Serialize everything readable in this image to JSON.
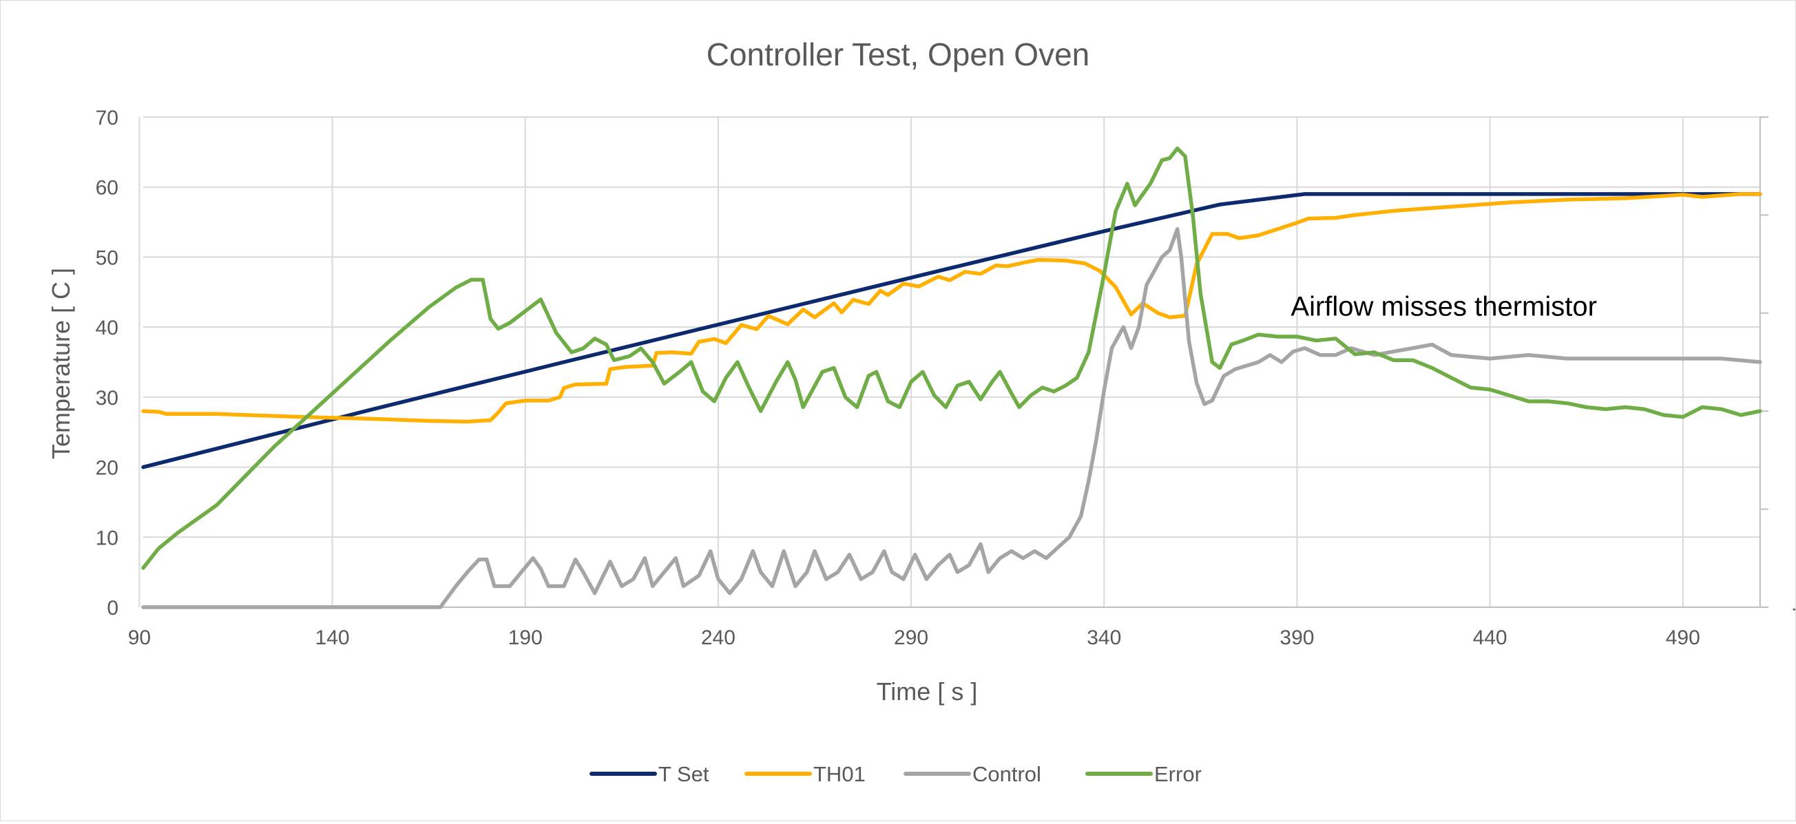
{
  "chart_data": {
    "type": "line",
    "title": "Controller Test, Open Oven",
    "xlabel": "Time [ s ]",
    "ylabel": "Temperature [ C ]",
    "y2label": "",
    "xlim": [
      90,
      510
    ],
    "ylim": [
      0,
      70
    ],
    "y2lim": [
      -10,
      15
    ],
    "x_ticks": [
      90,
      140,
      190,
      240,
      290,
      340,
      390,
      440,
      490
    ],
    "y_ticks": [
      0,
      10,
      20,
      30,
      40,
      50,
      60,
      70
    ],
    "y2_ticks": [
      -10,
      -5,
      0,
      5,
      10,
      15
    ],
    "grid": true,
    "legend_position": "bottom",
    "annotations": [
      {
        "text": "Airflow misses thermistor",
        "x": 390,
        "y": 43
      }
    ],
    "series": [
      {
        "name": "T Set",
        "axis": "left",
        "color": "#0e2a6e",
        "points": [
          [
            91,
            20
          ],
          [
            150,
            28.2
          ],
          [
            200,
            35
          ],
          [
            250,
            41.7
          ],
          [
            300,
            48.4
          ],
          [
            340,
            53.7
          ],
          [
            370,
            57.5
          ],
          [
            392,
            59
          ],
          [
            510,
            59
          ]
        ]
      },
      {
        "name": "TH01",
        "axis": "left",
        "color": "#ffb000",
        "points": [
          [
            91,
            28
          ],
          [
            95,
            27.9
          ],
          [
            97,
            27.6
          ],
          [
            110,
            27.6
          ],
          [
            130,
            27.2
          ],
          [
            150,
            26.9
          ],
          [
            165,
            26.6
          ],
          [
            175,
            26.5
          ],
          [
            181,
            26.7
          ],
          [
            183,
            27.8
          ],
          [
            185,
            29.1
          ],
          [
            190,
            29.5
          ],
          [
            196,
            29.5
          ],
          [
            199,
            30
          ],
          [
            200,
            31.3
          ],
          [
            203,
            31.8
          ],
          [
            211,
            31.9
          ],
          [
            212,
            34
          ],
          [
            216,
            34.3
          ],
          [
            223,
            34.5
          ],
          [
            224,
            36.3
          ],
          [
            228,
            36.4
          ],
          [
            233,
            36.2
          ],
          [
            235,
            37.9
          ],
          [
            239,
            38.3
          ],
          [
            242,
            37.7
          ],
          [
            246,
            40.3
          ],
          [
            250,
            39.7
          ],
          [
            253,
            41.6
          ],
          [
            258,
            40.4
          ],
          [
            262,
            42.5
          ],
          [
            265,
            41.4
          ],
          [
            270,
            43.4
          ],
          [
            272,
            42.1
          ],
          [
            275,
            43.9
          ],
          [
            279,
            43.3
          ],
          [
            282,
            45.2
          ],
          [
            284,
            44.6
          ],
          [
            288,
            46.2
          ],
          [
            292,
            45.8
          ],
          [
            297,
            47.2
          ],
          [
            300,
            46.7
          ],
          [
            304,
            47.9
          ],
          [
            308,
            47.6
          ],
          [
            312,
            48.8
          ],
          [
            315,
            48.7
          ],
          [
            320,
            49.3
          ],
          [
            323,
            49.6
          ],
          [
            330,
            49.5
          ],
          [
            335,
            49.1
          ],
          [
            339,
            48
          ],
          [
            343,
            45.7
          ],
          [
            347,
            41.8
          ],
          [
            350,
            43.4
          ],
          [
            354,
            42
          ],
          [
            357,
            41.4
          ],
          [
            361,
            41.6
          ],
          [
            364,
            49
          ],
          [
            368,
            53.3
          ],
          [
            372,
            53.3
          ],
          [
            375,
            52.7
          ],
          [
            380,
            53.1
          ],
          [
            385,
            54
          ],
          [
            390,
            54.9
          ],
          [
            393,
            55.5
          ],
          [
            400,
            55.6
          ],
          [
            405,
            56
          ],
          [
            415,
            56.6
          ],
          [
            425,
            57
          ],
          [
            435,
            57.4
          ],
          [
            445,
            57.8
          ],
          [
            460,
            58.2
          ],
          [
            475,
            58.4
          ],
          [
            490,
            58.9
          ],
          [
            495,
            58.6
          ],
          [
            505,
            59
          ],
          [
            510,
            59
          ]
        ]
      },
      {
        "name": "Control",
        "axis": "left",
        "color": "#a5a5a5",
        "points": [
          [
            91,
            0
          ],
          [
            168,
            0
          ],
          [
            172,
            3
          ],
          [
            175,
            5
          ],
          [
            178,
            6.8
          ],
          [
            180,
            6.8
          ],
          [
            182,
            3
          ],
          [
            186,
            3
          ],
          [
            189,
            5
          ],
          [
            192,
            7
          ],
          [
            194,
            5.5
          ],
          [
            196,
            3
          ],
          [
            200,
            3
          ],
          [
            203,
            6.8
          ],
          [
            205,
            5
          ],
          [
            208,
            2
          ],
          [
            212,
            6.5
          ],
          [
            215,
            3
          ],
          [
            218,
            4
          ],
          [
            221,
            7
          ],
          [
            223,
            3
          ],
          [
            226,
            5
          ],
          [
            229,
            7
          ],
          [
            231,
            3
          ],
          [
            235,
            4.5
          ],
          [
            238,
            8
          ],
          [
            240,
            4
          ],
          [
            243,
            2
          ],
          [
            246,
            4
          ],
          [
            249,
            8
          ],
          [
            251,
            5
          ],
          [
            254,
            3
          ],
          [
            257,
            8
          ],
          [
            260,
            3
          ],
          [
            263,
            5
          ],
          [
            265,
            8
          ],
          [
            268,
            4
          ],
          [
            271,
            5
          ],
          [
            274,
            7.5
          ],
          [
            277,
            4
          ],
          [
            280,
            5
          ],
          [
            283,
            8
          ],
          [
            285,
            5
          ],
          [
            288,
            4
          ],
          [
            291,
            7.5
          ],
          [
            294,
            4
          ],
          [
            297,
            6
          ],
          [
            300,
            7.5
          ],
          [
            302,
            5
          ],
          [
            305,
            6
          ],
          [
            308,
            9
          ],
          [
            310,
            5
          ],
          [
            313,
            7
          ],
          [
            316,
            8
          ],
          [
            319,
            7
          ],
          [
            322,
            8
          ],
          [
            325,
            7
          ],
          [
            328,
            8.5
          ],
          [
            331,
            10
          ],
          [
            334,
            13
          ],
          [
            336,
            18
          ],
          [
            338,
            24
          ],
          [
            340,
            31
          ],
          [
            342,
            37
          ],
          [
            345,
            40
          ],
          [
            347,
            37
          ],
          [
            349,
            40
          ],
          [
            351,
            46
          ],
          [
            353,
            48
          ],
          [
            355,
            50
          ],
          [
            357,
            51
          ],
          [
            359,
            54
          ],
          [
            360,
            50
          ],
          [
            362,
            38
          ],
          [
            364,
            32
          ],
          [
            366,
            29
          ],
          [
            368,
            29.5
          ],
          [
            371,
            33
          ],
          [
            374,
            34
          ],
          [
            377,
            34.5
          ],
          [
            380,
            35
          ],
          [
            383,
            36
          ],
          [
            386,
            35
          ],
          [
            389,
            36.5
          ],
          [
            392,
            37
          ],
          [
            396,
            36
          ],
          [
            400,
            36
          ],
          [
            404,
            37
          ],
          [
            410,
            36
          ],
          [
            415,
            36.5
          ],
          [
            420,
            37
          ],
          [
            425,
            37.5
          ],
          [
            430,
            36
          ],
          [
            440,
            35.5
          ],
          [
            450,
            36
          ],
          [
            460,
            35.5
          ],
          [
            470,
            35.5
          ],
          [
            480,
            35.5
          ],
          [
            490,
            35.5
          ],
          [
            500,
            35.5
          ],
          [
            510,
            35
          ]
        ]
      },
      {
        "name": "Error",
        "axis": "right",
        "color": "#70ad47",
        "points": [
          [
            91,
            -8
          ],
          [
            95,
            -7
          ],
          [
            100,
            -6.2
          ],
          [
            110,
            -4.8
          ],
          [
            115,
            -3.8
          ],
          [
            120,
            -2.8
          ],
          [
            125,
            -1.8
          ],
          [
            135,
            0
          ],
          [
            145,
            1.8
          ],
          [
            155,
            3.6
          ],
          [
            165,
            5.3
          ],
          [
            172,
            6.3
          ],
          [
            176,
            6.7
          ],
          [
            179,
            6.7
          ],
          [
            181,
            4.7
          ],
          [
            183,
            4.2
          ],
          [
            186,
            4.5
          ],
          [
            190,
            5.1
          ],
          [
            194,
            5.7
          ],
          [
            198,
            4
          ],
          [
            202,
            3
          ],
          [
            205,
            3.2
          ],
          [
            208,
            3.7
          ],
          [
            211,
            3.4
          ],
          [
            213,
            2.6
          ],
          [
            217,
            2.8
          ],
          [
            220,
            3.2
          ],
          [
            223,
            2.5
          ],
          [
            226,
            1.4
          ],
          [
            230,
            2
          ],
          [
            233,
            2.5
          ],
          [
            236,
            1
          ],
          [
            239,
            0.5
          ],
          [
            242,
            1.7
          ],
          [
            245,
            2.5
          ],
          [
            248,
            1.2
          ],
          [
            251,
            0
          ],
          [
            255,
            1.5
          ],
          [
            258,
            2.5
          ],
          [
            260,
            1.6
          ],
          [
            262,
            0.2
          ],
          [
            267,
            2
          ],
          [
            270,
            2.2
          ],
          [
            273,
            0.7
          ],
          [
            276,
            0.2
          ],
          [
            279,
            1.8
          ],
          [
            281,
            2
          ],
          [
            284,
            0.5
          ],
          [
            287,
            0.2
          ],
          [
            290,
            1.5
          ],
          [
            293,
            2
          ],
          [
            296,
            0.8
          ],
          [
            299,
            0.2
          ],
          [
            302,
            1.3
          ],
          [
            305,
            1.5
          ],
          [
            308,
            0.6
          ],
          [
            311,
            1.5
          ],
          [
            313,
            2
          ],
          [
            316,
            0.9
          ],
          [
            318,
            0.2
          ],
          [
            321,
            0.8
          ],
          [
            324,
            1.2
          ],
          [
            327,
            1
          ],
          [
            330,
            1.3
          ],
          [
            333,
            1.7
          ],
          [
            336,
            3
          ],
          [
            338,
            5
          ],
          [
            340,
            7
          ],
          [
            343,
            10.2
          ],
          [
            346,
            11.6
          ],
          [
            348,
            10.5
          ],
          [
            352,
            11.6
          ],
          [
            355,
            12.8
          ],
          [
            357,
            12.9
          ],
          [
            359,
            13.4
          ],
          [
            361,
            13
          ],
          [
            363,
            10
          ],
          [
            365,
            6
          ],
          [
            368,
            2.5
          ],
          [
            370,
            2.2
          ],
          [
            373,
            3.4
          ],
          [
            376,
            3.6
          ],
          [
            380,
            3.9
          ],
          [
            385,
            3.8
          ],
          [
            390,
            3.8
          ],
          [
            395,
            3.6
          ],
          [
            400,
            3.7
          ],
          [
            405,
            2.9
          ],
          [
            410,
            3
          ],
          [
            415,
            2.6
          ],
          [
            420,
            2.6
          ],
          [
            425,
            2.2
          ],
          [
            430,
            1.7
          ],
          [
            435,
            1.2
          ],
          [
            440,
            1.1
          ],
          [
            445,
            0.8
          ],
          [
            450,
            0.5
          ],
          [
            455,
            0.5
          ],
          [
            460,
            0.4
          ],
          [
            465,
            0.2
          ],
          [
            470,
            0.1
          ],
          [
            475,
            0.2
          ],
          [
            480,
            0.1
          ],
          [
            485,
            -0.2
          ],
          [
            490,
            -0.3
          ],
          [
            495,
            0.2
          ],
          [
            500,
            0.1
          ],
          [
            505,
            -0.2
          ],
          [
            510,
            0
          ]
        ]
      }
    ]
  }
}
